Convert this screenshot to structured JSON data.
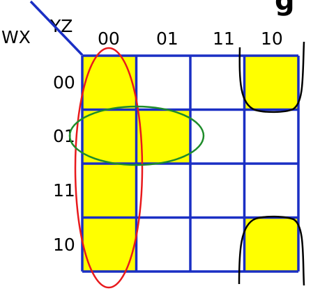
{
  "kmap": {
    "row_variables": "WX",
    "column_variables": "YZ",
    "column_labels": [
      "00",
      "01",
      "11",
      "10"
    ],
    "row_labels": [
      "00",
      "01",
      "11",
      "10"
    ],
    "cells": [
      [
        1,
        0,
        0,
        1
      ],
      [
        1,
        1,
        0,
        0
      ],
      [
        1,
        0,
        0,
        0
      ],
      [
        1,
        0,
        0,
        1
      ]
    ],
    "groups": [
      {
        "shape": "ellipse",
        "covers": "column 00"
      },
      {
        "shape": "ellipse",
        "covers": "row 01, columns 00-01"
      },
      {
        "shape": "wrap-around corners",
        "covers": "rows 00 and 10, column 10"
      }
    ]
  },
  "colors": {
    "grid": "#1a2fc4",
    "filled": "#ffff00",
    "empty": "#ffffff",
    "group_column": "#e8191c",
    "group_row": "#1e8c2a",
    "group_corner": "#000000",
    "text": "#000000"
  },
  "partial_title_fragment": "g"
}
